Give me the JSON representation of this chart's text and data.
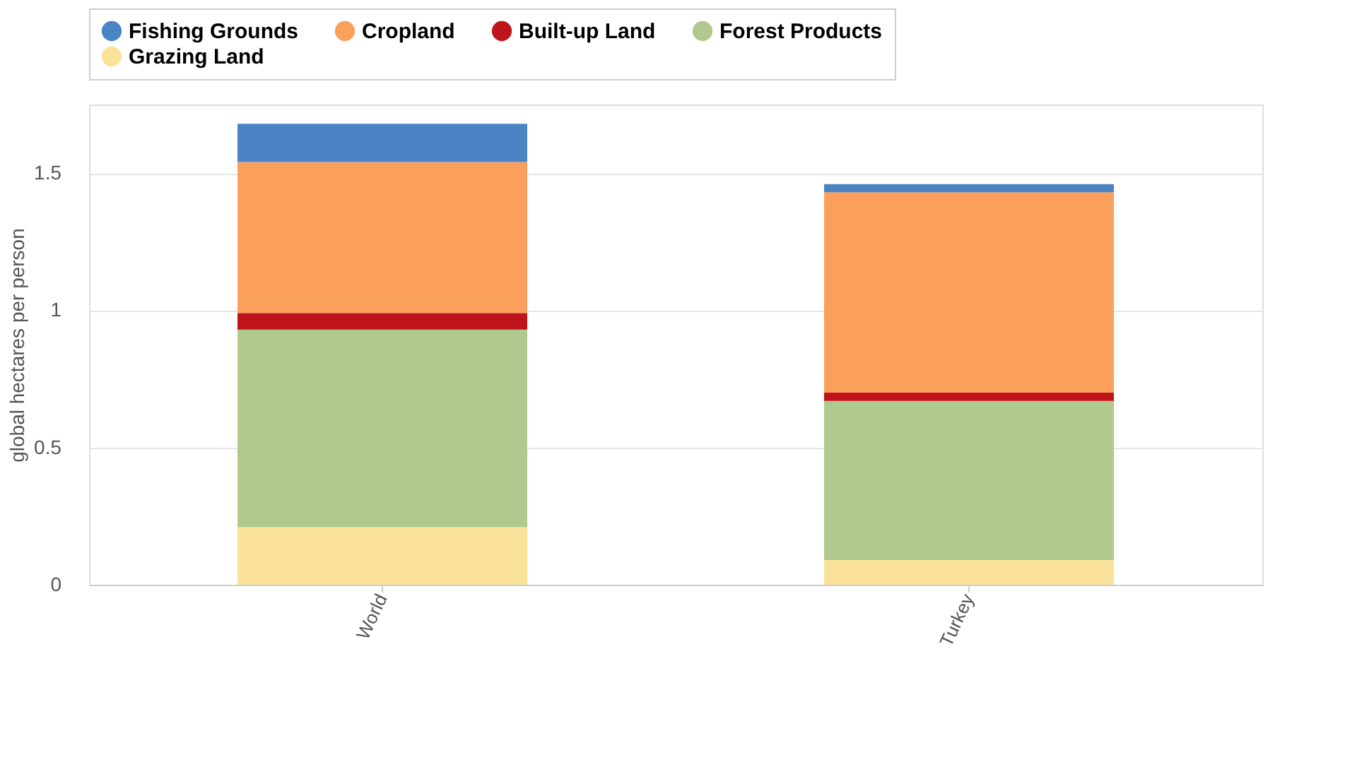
{
  "chart_data": {
    "type": "bar",
    "stacked": true,
    "ylabel": "global hectares per person",
    "categories": [
      "World",
      "Turkey"
    ],
    "series": [
      {
        "name": "Grazing Land",
        "color": "#fbe29a",
        "values": [
          0.21,
          0.09
        ]
      },
      {
        "name": "Forest Products",
        "color": "#b0c98e",
        "values": [
          0.72,
          0.58
        ]
      },
      {
        "name": "Built-up Land",
        "color": "#c0141c",
        "values": [
          0.06,
          0.03
        ]
      },
      {
        "name": "Cropland",
        "color": "#fba05c",
        "values": [
          0.55,
          0.73
        ]
      },
      {
        "name": "Fishing Grounds",
        "color": "#4a84c4",
        "values": [
          0.14,
          0.03
        ]
      }
    ],
    "ylim": [
      0,
      1.75
    ],
    "yticks": [
      0,
      0.5,
      1,
      1.5
    ],
    "grid": "y",
    "legend": "top"
  }
}
